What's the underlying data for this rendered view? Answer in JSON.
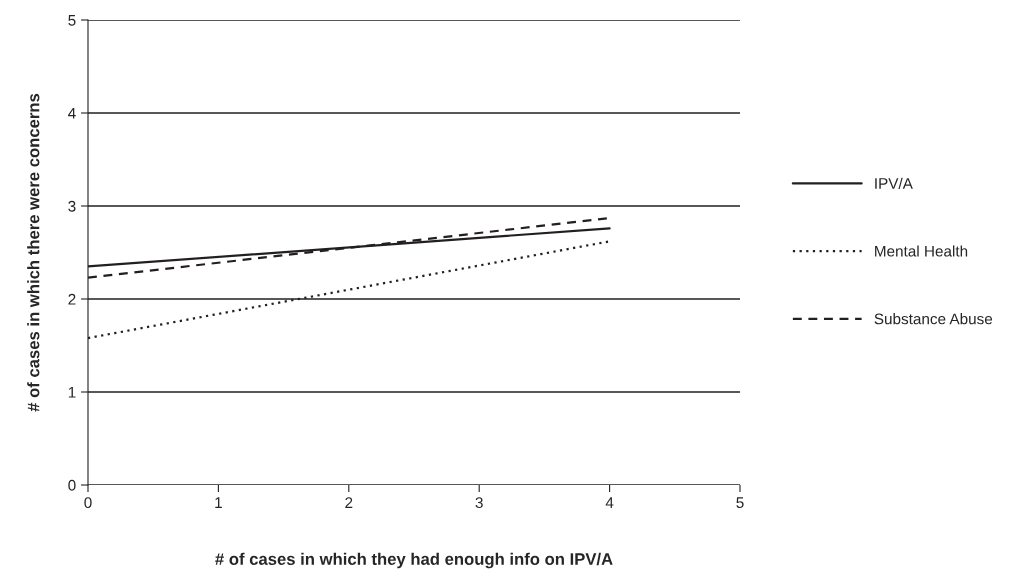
{
  "chart_data": {
    "type": "line",
    "xlabel": "# of cases in which they had enough info on IPV/A",
    "ylabel": "# of cases in which there were concerns",
    "x": [
      0,
      4
    ],
    "series": [
      {
        "name": "IPV/A",
        "color": "#231f20",
        "values": [
          2.35,
          2.76
        ],
        "line_style": "solid"
      },
      {
        "name": "Mental Health",
        "color": "#231f20",
        "values": [
          1.58,
          2.62
        ],
        "line_style": "dotted"
      },
      {
        "name": "Substance Abuse",
        "color": "#231f20",
        "values": [
          2.23,
          2.87
        ],
        "line_style": "dashed"
      }
    ],
    "xlim": [
      0,
      5
    ],
    "xticks": [
      0,
      1,
      2,
      3,
      4,
      5
    ],
    "ylim": [
      0,
      5
    ],
    "yticks": [
      0,
      1,
      2,
      3,
      4,
      5
    ],
    "grid": "y",
    "legend": "right",
    "marker": "none"
  }
}
